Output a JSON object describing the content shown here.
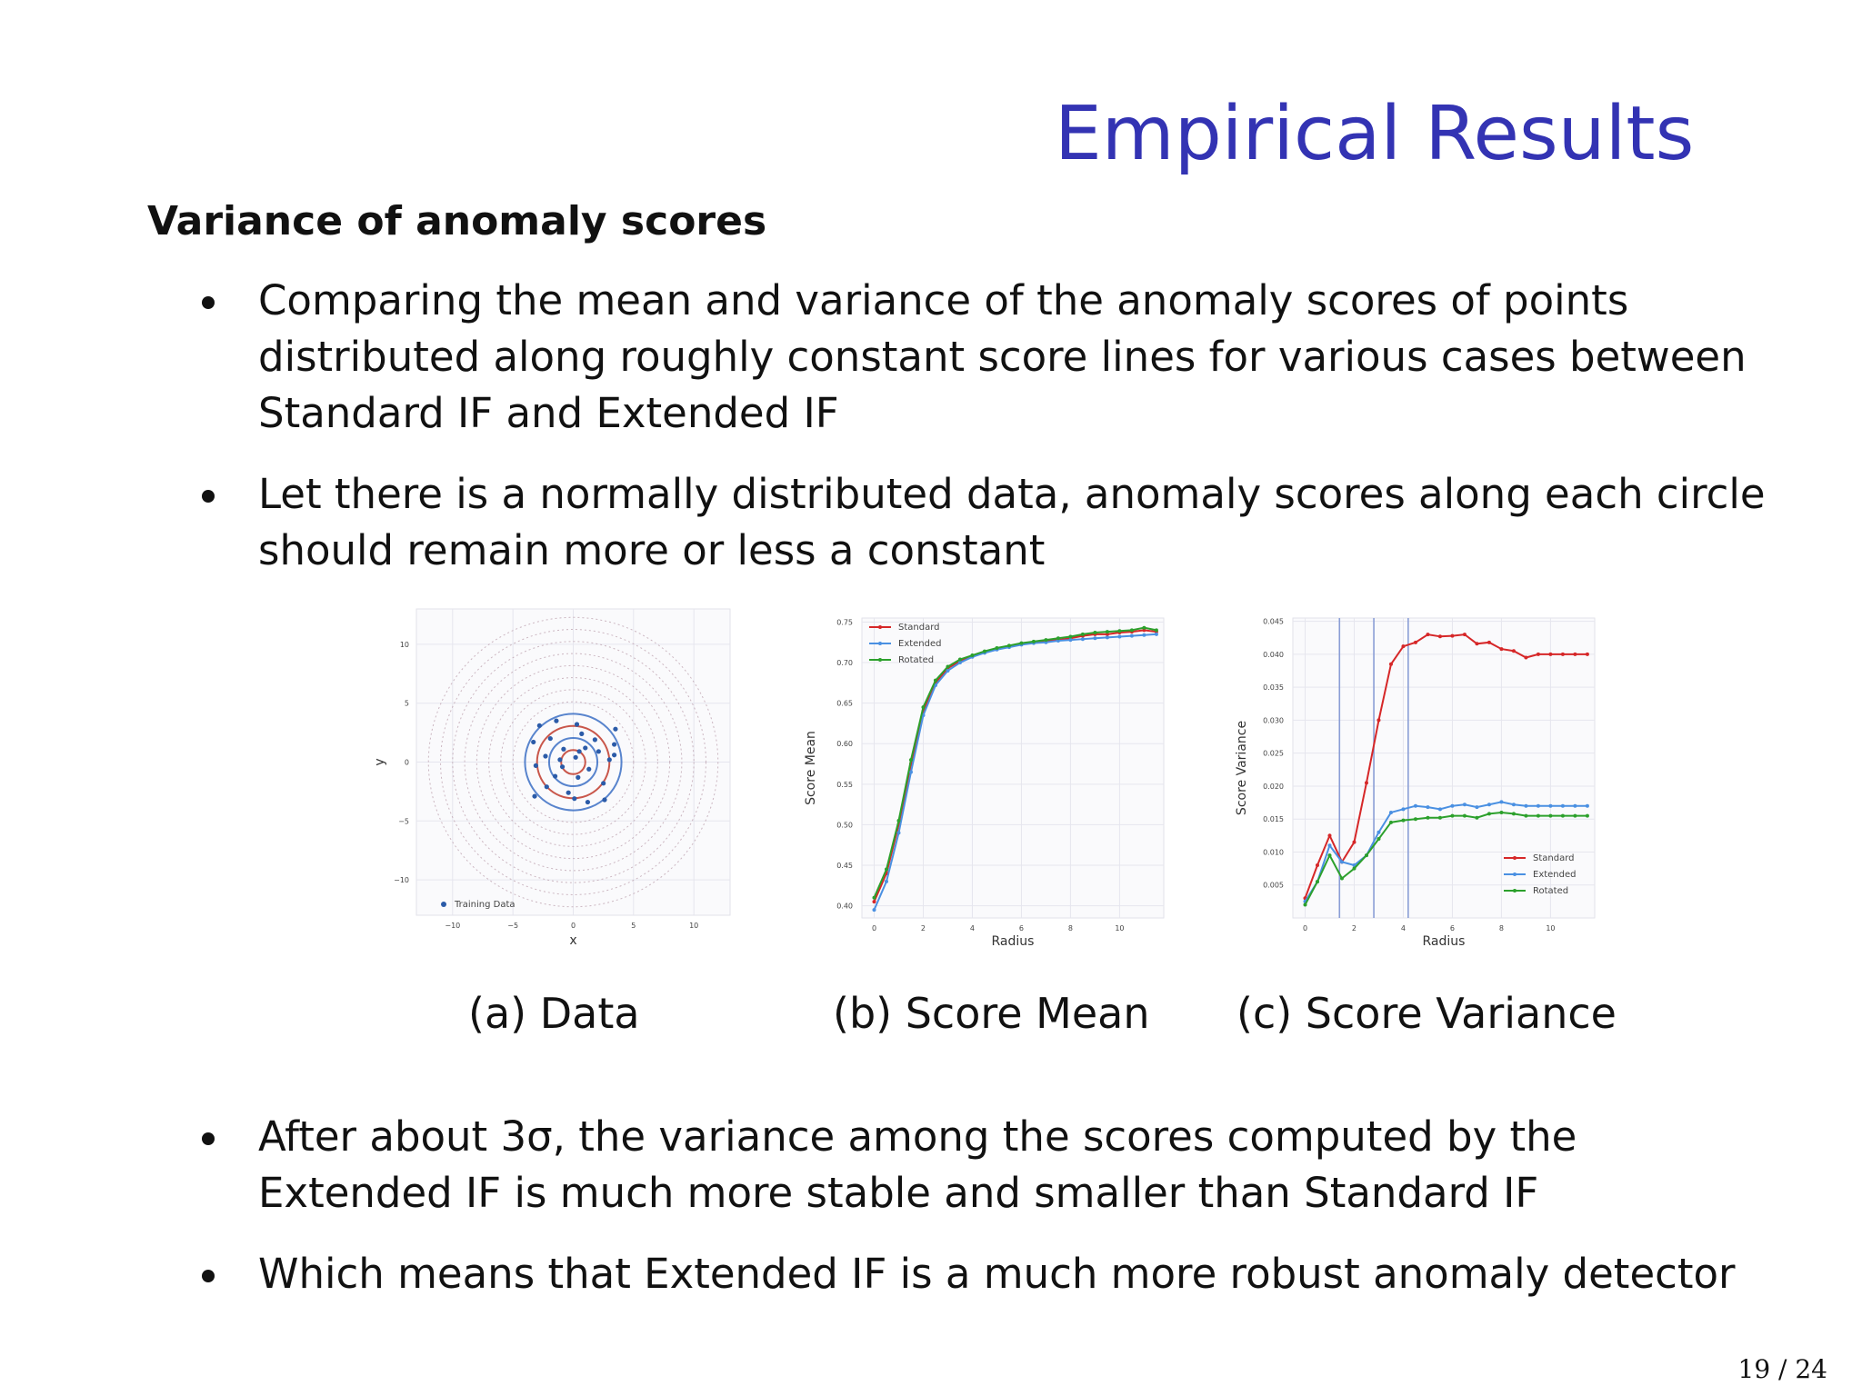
{
  "title": "Empirical Results",
  "subtitle": "Variance of anomaly scores",
  "bullets_top": [
    [
      "Comparing the mean and variance of the anomaly scores of points",
      "distributed along roughly constant score lines for various cases between",
      "Standard IF and Extended IF"
    ],
    [
      "Let there is a normally distributed data, anomaly scores along each circle",
      "should remain more or less a constant"
    ]
  ],
  "bullets_bottom": [
    [
      "After about 3σ, the variance among the scores computed by the",
      "Extended IF is much more stable and smaller than Standard IF"
    ],
    [
      "Which means that Extended IF is a much more robust anomaly detector"
    ]
  ],
  "captions": [
    "(a) Data",
    "(b) Score Mean",
    "(c) Score Variance"
  ],
  "page_number": "19 / 24",
  "colors": {
    "title": "#3333b3",
    "standard": "#d62728",
    "extended": "#4a90e2",
    "rotated": "#2ca02c",
    "training": "#2b5ba8"
  },
  "chart_data": [
    {
      "type": "scatter",
      "caption": "(a) Data",
      "xlabel": "x",
      "ylabel": "y",
      "xlim": [
        -13,
        13
      ],
      "ylim": [
        -13,
        13
      ],
      "x_ticks": [
        "−10",
        "−5",
        "0",
        "5",
        "10"
      ],
      "y_ticks": [
        "10",
        "5",
        "0",
        "−5",
        "−10"
      ],
      "legend": [
        "Training Data"
      ],
      "legend_position": "bottom-left",
      "grid": true,
      "contour_radii": [
        1,
        2,
        3,
        4,
        5,
        6,
        7,
        8,
        9,
        10,
        11,
        12
      ],
      "training_points": [
        [
          0.2,
          0.4
        ],
        [
          -0.8,
          1.1
        ],
        [
          1.3,
          -0.6
        ],
        [
          -1.5,
          -1.2
        ],
        [
          2.1,
          0.9
        ],
        [
          -2.3,
          0.5
        ],
        [
          0.7,
          2.4
        ],
        [
          -0.4,
          -2.6
        ],
        [
          1.8,
          1.9
        ],
        [
          -1.9,
          2.0
        ],
        [
          2.5,
          -1.8
        ],
        [
          -2.2,
          -2.1
        ],
        [
          3.0,
          0.2
        ],
        [
          -3.1,
          -0.3
        ],
        [
          0.3,
          3.2
        ],
        [
          0.1,
          -3.1
        ],
        [
          3.4,
          1.5
        ],
        [
          -3.3,
          1.7
        ],
        [
          1.2,
          -3.4
        ],
        [
          -1.4,
          3.5
        ],
        [
          3.5,
          2.8
        ],
        [
          -3.2,
          -2.9
        ],
        [
          2.6,
          -3.2
        ],
        [
          -2.8,
          3.1
        ],
        [
          3.4,
          0.6
        ],
        [
          0.5,
          0.9
        ],
        [
          -0.9,
          -0.4
        ],
        [
          1.0,
          1.2
        ],
        [
          -1.1,
          0.2
        ],
        [
          0.4,
          -1.3
        ]
      ]
    },
    {
      "type": "line",
      "caption": "(b) Score Mean",
      "xlabel": "Radius",
      "ylabel": "Score Mean",
      "xlim": [
        -0.5,
        11.8
      ],
      "ylim": [
        0.385,
        0.755
      ],
      "x_ticks": [
        "0",
        "2",
        "4",
        "6",
        "8",
        "10"
      ],
      "y_ticks": [
        "0.75",
        "0.70",
        "0.65",
        "0.60",
        "0.55",
        "0.50",
        "0.45",
        "0.40"
      ],
      "legend_position": "top-left",
      "grid": true,
      "x": [
        0,
        0.5,
        1,
        1.5,
        2,
        2.5,
        3,
        3.5,
        4,
        4.5,
        5,
        5.5,
        6,
        6.5,
        7,
        7.5,
        8,
        8.5,
        9,
        9.5,
        10,
        10.5,
        11,
        11.5
      ],
      "series": [
        {
          "name": "Standard",
          "color": "#d62728",
          "values": [
            0.405,
            0.44,
            0.5,
            0.575,
            0.64,
            0.675,
            0.693,
            0.702,
            0.708,
            0.713,
            0.717,
            0.72,
            0.723,
            0.725,
            0.727,
            0.728,
            0.73,
            0.733,
            0.735,
            0.735,
            0.737,
            0.738,
            0.74,
            0.738
          ]
        },
        {
          "name": "Extended",
          "color": "#4a90e2",
          "values": [
            0.395,
            0.43,
            0.49,
            0.565,
            0.635,
            0.672,
            0.69,
            0.7,
            0.707,
            0.712,
            0.716,
            0.719,
            0.722,
            0.724,
            0.725,
            0.727,
            0.728,
            0.729,
            0.73,
            0.731,
            0.732,
            0.733,
            0.734,
            0.735
          ]
        },
        {
          "name": "Rotated",
          "color": "#2ca02c",
          "values": [
            0.41,
            0.445,
            0.505,
            0.58,
            0.645,
            0.678,
            0.695,
            0.704,
            0.709,
            0.714,
            0.718,
            0.721,
            0.724,
            0.726,
            0.728,
            0.73,
            0.732,
            0.735,
            0.737,
            0.738,
            0.739,
            0.74,
            0.743,
            0.74
          ]
        }
      ]
    },
    {
      "type": "line",
      "caption": "(c) Score Variance",
      "xlabel": "Radius",
      "ylabel": "Score Variance",
      "xlim": [
        -0.5,
        11.8
      ],
      "ylim": [
        0.0,
        0.0455
      ],
      "x_ticks": [
        "0",
        "2",
        "4",
        "6",
        "8",
        "10"
      ],
      "y_ticks": [
        "0.045",
        "0.040",
        "0.035",
        "0.030",
        "0.025",
        "0.020",
        "0.015",
        "0.010",
        "0.005"
      ],
      "legend_position": "bottom-right",
      "grid": true,
      "vlines": [
        1.4,
        2.8,
        4.2
      ],
      "x": [
        0,
        0.5,
        1,
        1.5,
        2,
        2.5,
        3,
        3.5,
        4,
        4.5,
        5,
        5.5,
        6,
        6.5,
        7,
        7.5,
        8,
        8.5,
        9,
        9.5,
        10,
        10.5,
        11,
        11.5
      ],
      "series": [
        {
          "name": "Standard",
          "color": "#d62728",
          "values": [
            0.003,
            0.008,
            0.0125,
            0.0085,
            0.0115,
            0.0205,
            0.03,
            0.0385,
            0.0412,
            0.0418,
            0.043,
            0.0427,
            0.0428,
            0.043,
            0.0416,
            0.0418,
            0.0408,
            0.0405,
            0.0395,
            0.04,
            0.04,
            0.04,
            0.04,
            0.04
          ]
        },
        {
          "name": "Extended",
          "color": "#4a90e2",
          "values": [
            0.0025,
            0.0055,
            0.011,
            0.0085,
            0.008,
            0.0095,
            0.013,
            0.016,
            0.0165,
            0.017,
            0.0168,
            0.0165,
            0.017,
            0.0172,
            0.0168,
            0.0172,
            0.0176,
            0.0172,
            0.017,
            0.017,
            0.017,
            0.017,
            0.017,
            0.017
          ]
        },
        {
          "name": "Rotated",
          "color": "#2ca02c",
          "values": [
            0.002,
            0.0055,
            0.0095,
            0.006,
            0.0075,
            0.0095,
            0.012,
            0.0145,
            0.0148,
            0.015,
            0.0152,
            0.0152,
            0.0155,
            0.0155,
            0.0152,
            0.0158,
            0.016,
            0.0158,
            0.0155,
            0.0155,
            0.0155,
            0.0155,
            0.0155,
            0.0155
          ]
        }
      ]
    }
  ]
}
